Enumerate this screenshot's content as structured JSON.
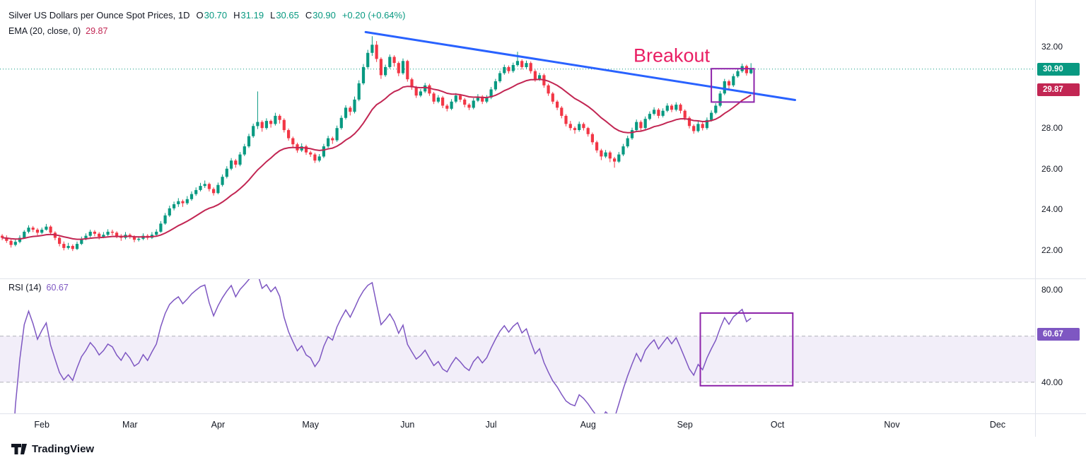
{
  "header": {
    "title": "Silver US Dollars per Ounce Spot Prices, 1D",
    "ohlc": {
      "open_label": "O",
      "open": "30.70",
      "high_label": "H",
      "high": "31.19",
      "low_label": "L",
      "low": "30.65",
      "close_label": "C",
      "close": "30.90",
      "change": "+0.20 (+0.64%)"
    },
    "ema_label": "EMA (20, close, 0)",
    "ema_value": "29.87"
  },
  "rsi_header": {
    "label": "RSI (14)",
    "value": "60.67"
  },
  "axis": {
    "price_ticks": [
      {
        "label": "32.00",
        "value": 32
      },
      {
        "label": "28.00",
        "value": 28
      },
      {
        "label": "26.00",
        "value": 26
      },
      {
        "label": "24.00",
        "value": 24
      },
      {
        "label": "22.00",
        "value": 22
      }
    ],
    "price_badges": [
      {
        "label": "30.90",
        "value": 30.9,
        "color": "#089981"
      },
      {
        "label": "29.87",
        "value": 29.87,
        "color": "#c22653"
      }
    ],
    "rsi_ticks": [
      {
        "label": "80.00",
        "value": 80
      },
      {
        "label": "40.00",
        "value": 40
      }
    ],
    "rsi_badge": {
      "label": "60.67",
      "value": 60.67,
      "color": "#7e57c2"
    },
    "months": [
      {
        "label": "Feb",
        "slot": 9
      },
      {
        "label": "Mar",
        "slot": 29
      },
      {
        "label": "Apr",
        "slot": 49
      },
      {
        "label": "May",
        "slot": 70
      },
      {
        "label": "Jun",
        "slot": 92
      },
      {
        "label": "Jul",
        "slot": 111
      },
      {
        "label": "Aug",
        "slot": 133
      },
      {
        "label": "Sep",
        "slot": 155
      },
      {
        "label": "Oct",
        "slot": 176
      },
      {
        "label": "Nov",
        "slot": 202
      },
      {
        "label": "Dec",
        "slot": 226
      }
    ]
  },
  "chart_data": {
    "type": "candlestick",
    "symbol": "Silver US Dollars per Ounce Spot Prices",
    "interval": "1D",
    "ylim": [
      20.6,
      34.3
    ],
    "total_slots": 235,
    "colors": {
      "up": "#089981",
      "down": "#f23645",
      "ema": "#c22653",
      "trendline": "#2962ff",
      "rsi": "#7e57c2",
      "highlight": "#8e24aa",
      "breakout": "#e91e63",
      "last_price": "#089981"
    },
    "candles": [
      [
        22.7,
        22.78,
        22.48,
        22.6
      ],
      [
        22.6,
        22.72,
        22.35,
        22.45
      ],
      [
        22.45,
        22.52,
        22.12,
        22.25
      ],
      [
        22.25,
        22.52,
        22.18,
        22.4
      ],
      [
        22.4,
        22.72,
        22.33,
        22.6
      ],
      [
        22.6,
        22.98,
        22.55,
        22.9
      ],
      [
        22.9,
        23.22,
        22.82,
        23.1
      ],
      [
        23.1,
        23.18,
        22.88,
        23.0
      ],
      [
        23.0,
        23.08,
        22.72,
        22.85
      ],
      [
        22.85,
        23.1,
        22.78,
        23.0
      ],
      [
        23.0,
        23.28,
        22.95,
        23.15
      ],
      [
        23.15,
        23.22,
        22.76,
        22.85
      ],
      [
        22.85,
        22.92,
        22.48,
        22.6
      ],
      [
        22.6,
        22.66,
        22.18,
        22.3
      ],
      [
        22.3,
        22.42,
        21.98,
        22.1
      ],
      [
        22.1,
        22.35,
        22.02,
        22.2
      ],
      [
        22.2,
        22.28,
        21.95,
        22.05
      ],
      [
        22.05,
        22.42,
        22.0,
        22.3
      ],
      [
        22.3,
        22.66,
        22.24,
        22.55
      ],
      [
        22.55,
        22.82,
        22.48,
        22.7
      ],
      [
        22.7,
        23.0,
        22.62,
        22.9
      ],
      [
        22.9,
        22.98,
        22.68,
        22.8
      ],
      [
        22.8,
        22.88,
        22.52,
        22.65
      ],
      [
        22.65,
        22.88,
        22.58,
        22.75
      ],
      [
        22.75,
        23.02,
        22.68,
        22.9
      ],
      [
        22.9,
        23.0,
        22.72,
        22.85
      ],
      [
        22.85,
        22.92,
        22.58,
        22.7
      ],
      [
        22.7,
        22.78,
        22.45,
        22.6
      ],
      [
        22.6,
        22.88,
        22.52,
        22.75
      ],
      [
        22.75,
        22.82,
        22.55,
        22.65
      ],
      [
        22.65,
        22.72,
        22.38,
        22.5
      ],
      [
        22.5,
        22.68,
        22.42,
        22.55
      ],
      [
        22.55,
        22.82,
        22.48,
        22.7
      ],
      [
        22.7,
        22.78,
        22.5,
        22.6
      ],
      [
        22.6,
        22.88,
        22.54,
        22.75
      ],
      [
        22.75,
        23.02,
        22.68,
        22.9
      ],
      [
        22.9,
        23.42,
        22.85,
        23.3
      ],
      [
        23.3,
        23.82,
        23.24,
        23.7
      ],
      [
        23.7,
        24.18,
        23.62,
        24.05
      ],
      [
        24.05,
        24.38,
        23.95,
        24.25
      ],
      [
        24.25,
        24.55,
        24.12,
        24.4
      ],
      [
        24.4,
        24.48,
        24.12,
        24.3
      ],
      [
        24.3,
        24.65,
        24.22,
        24.5
      ],
      [
        24.5,
        24.88,
        24.42,
        24.75
      ],
      [
        24.75,
        25.08,
        24.66,
        24.95
      ],
      [
        24.95,
        25.3,
        24.88,
        25.15
      ],
      [
        25.15,
        25.42,
        25.05,
        25.25
      ],
      [
        25.25,
        25.32,
        24.88,
        25.0
      ],
      [
        25.0,
        25.08,
        24.68,
        24.8
      ],
      [
        24.8,
        25.32,
        24.74,
        25.2
      ],
      [
        25.2,
        25.72,
        25.12,
        25.6
      ],
      [
        25.6,
        26.12,
        25.52,
        26.0
      ],
      [
        26.0,
        26.52,
        25.92,
        26.4
      ],
      [
        26.4,
        26.48,
        26.05,
        26.2
      ],
      [
        26.2,
        26.82,
        26.12,
        26.7
      ],
      [
        26.7,
        27.22,
        26.62,
        27.1
      ],
      [
        27.1,
        27.72,
        27.02,
        27.6
      ],
      [
        27.6,
        28.22,
        27.52,
        28.1
      ],
      [
        28.1,
        29.8,
        27.95,
        28.3
      ],
      [
        28.3,
        28.38,
        27.82,
        28.0
      ],
      [
        28.0,
        28.48,
        27.92,
        28.35
      ],
      [
        28.35,
        28.42,
        28.02,
        28.2
      ],
      [
        28.2,
        28.75,
        28.12,
        28.6
      ],
      [
        28.6,
        28.68,
        28.22,
        28.4
      ],
      [
        28.4,
        28.48,
        27.78,
        27.9
      ],
      [
        27.9,
        27.98,
        27.38,
        27.5
      ],
      [
        27.5,
        27.58,
        27.05,
        27.2
      ],
      [
        27.2,
        27.28,
        26.78,
        26.9
      ],
      [
        26.9,
        27.25,
        26.82,
        27.1
      ],
      [
        27.1,
        27.18,
        26.68,
        26.8
      ],
      [
        26.8,
        26.88,
        26.58,
        26.7
      ],
      [
        26.7,
        26.78,
        26.28,
        26.4
      ],
      [
        26.4,
        26.72,
        26.32,
        26.6
      ],
      [
        26.6,
        27.22,
        26.52,
        27.1
      ],
      [
        27.1,
        27.62,
        27.02,
        27.5
      ],
      [
        27.5,
        27.58,
        27.22,
        27.4
      ],
      [
        27.4,
        28.12,
        27.32,
        28.0
      ],
      [
        28.0,
        28.62,
        27.92,
        28.5
      ],
      [
        28.5,
        29.12,
        28.42,
        29.0
      ],
      [
        29.0,
        29.08,
        28.62,
        28.8
      ],
      [
        28.8,
        29.55,
        28.72,
        29.4
      ],
      [
        29.4,
        30.35,
        29.32,
        30.2
      ],
      [
        30.2,
        31.15,
        30.12,
        31.0
      ],
      [
        31.0,
        31.85,
        30.92,
        31.7
      ],
      [
        31.7,
        32.52,
        31.55,
        32.1
      ],
      [
        32.1,
        32.28,
        31.25,
        31.4
      ],
      [
        31.4,
        31.48,
        30.42,
        30.6
      ],
      [
        30.6,
        31.12,
        30.52,
        31.0
      ],
      [
        31.0,
        31.62,
        30.92,
        31.5
      ],
      [
        31.5,
        31.58,
        31.02,
        31.2
      ],
      [
        31.2,
        31.28,
        30.55,
        30.7
      ],
      [
        30.7,
        31.42,
        30.62,
        31.3
      ],
      [
        31.3,
        31.36,
        30.28,
        30.4
      ],
      [
        30.4,
        30.48,
        29.88,
        30.0
      ],
      [
        30.0,
        30.08,
        29.48,
        29.6
      ],
      [
        29.6,
        29.92,
        29.52,
        29.8
      ],
      [
        29.8,
        30.22,
        29.72,
        30.1
      ],
      [
        30.1,
        30.18,
        29.58,
        29.7
      ],
      [
        29.7,
        29.78,
        29.18,
        29.3
      ],
      [
        29.3,
        29.62,
        29.22,
        29.5
      ],
      [
        29.5,
        29.58,
        28.98,
        29.1
      ],
      [
        29.1,
        29.18,
        28.82,
        28.95
      ],
      [
        28.95,
        29.42,
        28.88,
        29.3
      ],
      [
        29.3,
        29.72,
        29.22,
        29.6
      ],
      [
        29.6,
        29.68,
        29.28,
        29.4
      ],
      [
        29.4,
        29.48,
        29.02,
        29.15
      ],
      [
        29.15,
        29.22,
        28.88,
        29.0
      ],
      [
        29.0,
        29.47,
        28.92,
        29.35
      ],
      [
        29.35,
        29.67,
        29.28,
        29.55
      ],
      [
        29.55,
        29.62,
        29.18,
        29.3
      ],
      [
        29.3,
        29.62,
        29.22,
        29.5
      ],
      [
        29.5,
        30.02,
        29.42,
        29.9
      ],
      [
        29.9,
        30.42,
        29.82,
        30.3
      ],
      [
        30.3,
        30.82,
        30.22,
        30.7
      ],
      [
        30.7,
        31.12,
        30.62,
        31.0
      ],
      [
        31.0,
        31.08,
        30.68,
        30.8
      ],
      [
        30.8,
        31.22,
        30.72,
        31.1
      ],
      [
        31.1,
        31.75,
        31.02,
        31.3
      ],
      [
        31.3,
        31.38,
        30.88,
        31.0
      ],
      [
        31.0,
        31.32,
        30.92,
        31.2
      ],
      [
        31.2,
        31.28,
        30.68,
        30.8
      ],
      [
        30.8,
        30.88,
        30.28,
        30.4
      ],
      [
        30.4,
        30.72,
        30.32,
        30.6
      ],
      [
        30.6,
        30.68,
        29.98,
        30.1
      ],
      [
        30.1,
        30.18,
        29.58,
        29.7
      ],
      [
        29.7,
        29.78,
        29.18,
        29.3
      ],
      [
        29.3,
        29.38,
        28.88,
        29.0
      ],
      [
        29.0,
        29.08,
        28.48,
        28.6
      ],
      [
        28.6,
        28.68,
        28.08,
        28.2
      ],
      [
        28.2,
        28.35,
        27.88,
        28.0
      ],
      [
        28.0,
        28.08,
        27.72,
        27.9
      ],
      [
        27.9,
        28.32,
        27.82,
        28.2
      ],
      [
        28.2,
        28.28,
        27.88,
        28.0
      ],
      [
        28.0,
        28.06,
        27.58,
        27.7
      ],
      [
        27.7,
        27.78,
        27.18,
        27.3
      ],
      [
        27.3,
        27.38,
        26.78,
        26.9
      ],
      [
        26.9,
        26.98,
        26.42,
        26.6
      ],
      [
        26.6,
        26.92,
        26.52,
        26.8
      ],
      [
        26.8,
        26.88,
        26.32,
        26.5
      ],
      [
        26.5,
        26.58,
        26.05,
        26.35
      ],
      [
        26.35,
        26.82,
        26.28,
        26.7
      ],
      [
        26.7,
        27.22,
        26.62,
        27.1
      ],
      [
        27.1,
        27.62,
        27.02,
        27.5
      ],
      [
        27.5,
        28.02,
        27.42,
        27.9
      ],
      [
        27.9,
        28.42,
        27.82,
        28.3
      ],
      [
        28.3,
        28.38,
        27.88,
        28.0
      ],
      [
        28.0,
        28.57,
        27.92,
        28.45
      ],
      [
        28.45,
        28.82,
        28.38,
        28.7
      ],
      [
        28.7,
        29.02,
        28.62,
        28.9
      ],
      [
        28.9,
        28.98,
        28.48,
        28.6
      ],
      [
        28.6,
        28.97,
        28.52,
        28.85
      ],
      [
        28.85,
        29.22,
        28.78,
        29.1
      ],
      [
        29.1,
        29.18,
        28.78,
        28.9
      ],
      [
        28.9,
        29.27,
        28.82,
        29.15
      ],
      [
        29.15,
        29.22,
        28.72,
        28.85
      ],
      [
        28.85,
        28.92,
        28.38,
        28.5
      ],
      [
        28.5,
        28.58,
        27.98,
        28.1
      ],
      [
        28.1,
        28.18,
        27.72,
        27.85
      ],
      [
        27.85,
        28.32,
        27.78,
        28.2
      ],
      [
        28.2,
        28.28,
        27.88,
        28.0
      ],
      [
        28.0,
        28.52,
        27.92,
        28.4
      ],
      [
        28.4,
        28.87,
        28.32,
        28.75
      ],
      [
        28.75,
        29.22,
        28.68,
        29.1
      ],
      [
        29.1,
        29.82,
        29.02,
        29.7
      ],
      [
        29.7,
        30.42,
        29.62,
        30.3
      ],
      [
        30.3,
        30.38,
        29.92,
        30.1
      ],
      [
        30.1,
        30.67,
        30.02,
        30.55
      ],
      [
        30.55,
        30.92,
        30.48,
        30.8
      ],
      [
        30.8,
        31.17,
        30.72,
        31.05
      ],
      [
        31.05,
        31.12,
        30.58,
        30.7
      ],
      [
        30.7,
        31.19,
        30.65,
        30.9
      ]
    ],
    "overlays": {
      "ema": {
        "type": "ema",
        "period": 20,
        "source": "close",
        "offset": 0,
        "value": 29.87
      },
      "trendline": {
        "from_slot": 82.5,
        "from_price": 32.72,
        "to_slot": 180,
        "to_price": 29.38,
        "color": "#2962ff"
      },
      "last_price_line": {
        "value": 30.9,
        "color": "#089981"
      },
      "breakout_label": {
        "text": "Breakout",
        "slot": 152,
        "price": 31.25,
        "color": "#e91e63"
      },
      "highlight_rect": {
        "slot_start": 161,
        "slot_end": 170.7,
        "price_top": 30.92,
        "price_bottom": 29.28,
        "color": "#8e24aa"
      }
    },
    "rsi": {
      "type": "rsi",
      "period": 14,
      "value": 60.67,
      "ylim": [
        26.5,
        85
      ],
      "band_upper": 60,
      "band_lower": 40,
      "highlight_rect": {
        "slot_start": 158.5,
        "slot_end": 179.5,
        "top": 70,
        "bottom": 38.5,
        "color": "#8e24aa"
      }
    }
  },
  "footer": {
    "brand": "TradingView"
  }
}
